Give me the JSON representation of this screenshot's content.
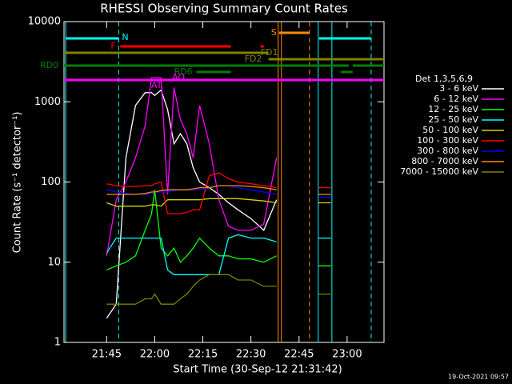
{
  "chart_data": {
    "type": "line",
    "title": "RHESSI Observing Summary Count Rates",
    "xlabel": "Start Time (30-Sep-12 21:31:42)",
    "ylabel": "Count Rate (s⁻¹ detector⁻¹)",
    "legend_title": "Det 1,3,5,6,9",
    "timestamp": "19-Oct-2021 09:57",
    "log_y": true,
    "xlim": [
      1291.7,
      1391.5
    ],
    "ylim": [
      1,
      10000
    ],
    "yticks": [
      1,
      10,
      100,
      1000,
      10000
    ],
    "xticks": [
      {
        "value": 1305,
        "label": "21:45"
      },
      {
        "value": 1320,
        "label": "22:00"
      },
      {
        "value": 1335,
        "label": "22:15"
      },
      {
        "value": 1350,
        "label": "22:30"
      },
      {
        "value": 1365,
        "label": "22:45"
      },
      {
        "value": 1380,
        "label": "23:00"
      }
    ],
    "x": [
      1305,
      1308,
      1311,
      1314,
      1317,
      1319,
      1320,
      1322,
      1324,
      1326,
      1328,
      1330,
      1332,
      1334,
      1337,
      1340,
      1343,
      1346,
      1350,
      1354,
      1358,
      1364,
      1371,
      1375
    ],
    "series": [
      {
        "name": "3 - 6 keV",
        "color": "#ffffff",
        "values": [
          2,
          3,
          200,
          900,
          1300,
          1300,
          1200,
          1400,
          800,
          300,
          400,
          300,
          150,
          100,
          85,
          70,
          55,
          45,
          35,
          25,
          60,
          null,
          null,
          null
        ]
      },
      {
        "name": "6 - 12 keV",
        "color": "#ff00ff",
        "values": [
          12,
          60,
          100,
          200,
          500,
          2000,
          2000,
          2000,
          70,
          1500,
          600,
          400,
          200,
          900,
          300,
          60,
          28,
          25,
          25,
          30,
          200,
          null,
          null,
          null
        ]
      },
      {
        "name": "12 - 25 keV",
        "color": "#00ff00",
        "values": [
          8,
          9,
          10,
          12,
          25,
          40,
          80,
          15,
          12,
          15,
          10,
          12,
          15,
          20,
          15,
          12,
          12,
          11,
          11,
          10,
          12,
          null,
          9,
          9
        ]
      },
      {
        "name": "25 - 50 keV",
        "color": "#00ffff",
        "values": [
          13,
          20,
          20,
          20,
          20,
          20,
          20,
          20,
          8,
          7,
          7,
          7,
          7,
          7,
          7,
          7,
          20,
          22,
          20,
          20,
          18,
          null,
          20,
          20
        ]
      },
      {
        "name": "50 - 100 keV",
        "color": "#d4d400",
        "values": [
          55,
          50,
          50,
          50,
          50,
          52,
          52,
          50,
          60,
          60,
          60,
          60,
          60,
          60,
          62,
          62,
          62,
          62,
          60,
          58,
          55,
          null,
          55,
          55
        ]
      },
      {
        "name": "100 - 300 keV",
        "color": "#ff0000",
        "values": [
          95,
          90,
          88,
          88,
          90,
          90,
          95,
          100,
          40,
          40,
          40,
          42,
          45,
          45,
          120,
          130,
          110,
          100,
          95,
          90,
          85,
          null,
          85,
          85
        ]
      },
      {
        "name": "300 - 800 keV",
        "color": "#0000ff",
        "values": [
          80,
          75,
          72,
          70,
          70,
          72,
          75,
          75,
          75,
          78,
          80,
          80,
          80,
          80,
          85,
          90,
          90,
          85,
          80,
          75,
          70,
          null,
          65,
          65
        ]
      },
      {
        "name": "800 - 7000 keV",
        "color": "#ff8c00",
        "values": [
          70,
          70,
          70,
          70,
          72,
          75,
          75,
          78,
          80,
          80,
          80,
          80,
          82,
          85,
          85,
          90,
          90,
          90,
          88,
          85,
          80,
          null,
          70,
          70
        ]
      },
      {
        "name": "7000 - 15000 keV",
        "color": "#808000",
        "values": [
          3,
          3,
          3,
          3,
          3.5,
          3.5,
          4,
          3,
          3,
          3,
          3.5,
          4,
          5,
          6,
          7,
          7,
          7,
          6,
          6,
          5,
          5,
          null,
          4,
          4
        ]
      }
    ],
    "flags": [
      {
        "label": "N",
        "color": "#00ffff",
        "intervals": [
          [
            1292.25,
            1308.75
          ],
          [
            1371.25,
            1387.5
          ]
        ]
      },
      {
        "label": "S",
        "color": "#ff8c00",
        "intervals": [
          [
            1358.75,
            1368.25
          ]
        ]
      },
      {
        "label": "F",
        "color": "#ff0000",
        "intervals": [
          [
            1309.25,
            1343.75
          ],
          [
            1353,
            1354
          ]
        ]
      },
      {
        "label": "FD1",
        "color": "#808000",
        "intervals": [
          [
            1291.7,
            1355.5
          ]
        ]
      },
      {
        "label": "FD2",
        "color": "#808000",
        "intervals": [
          [
            1355.5,
            1391.5
          ]
        ]
      },
      {
        "label": "RD0",
        "color": "#008000",
        "intervals": [
          [
            1291.7,
            1380.5
          ],
          [
            1381.75,
            1391.5
          ]
        ]
      },
      {
        "label": "RD6",
        "color": "#008000",
        "intervals": [
          [
            1333,
            1343.75
          ],
          [
            1378,
            1381.75
          ]
        ]
      },
      {
        "label": "AO",
        "color": "#ff00ff",
        "intervals": [
          [
            1291.7,
            1391.5
          ]
        ]
      }
    ],
    "annotations": [
      "AT"
    ],
    "vlines": [
      {
        "x": 1292.25,
        "color": "#00ffff",
        "dashed": false
      },
      {
        "x": 1308.75,
        "color": "#00ffff",
        "dashed": true
      },
      {
        "x": 1358.5,
        "color": "#ff8c00",
        "dashed": false
      },
      {
        "x": 1359.5,
        "color": "#ff8c00",
        "dashed": false
      },
      {
        "x": 1368.25,
        "color": "#ff8c00",
        "dashed": true
      },
      {
        "x": 1371,
        "color": "#00ffff",
        "dashed": false
      },
      {
        "x": 1375.25,
        "color": "#00ffff",
        "dashed": false
      },
      {
        "x": 1387.5,
        "color": "#00ffff",
        "dashed": true
      }
    ]
  }
}
